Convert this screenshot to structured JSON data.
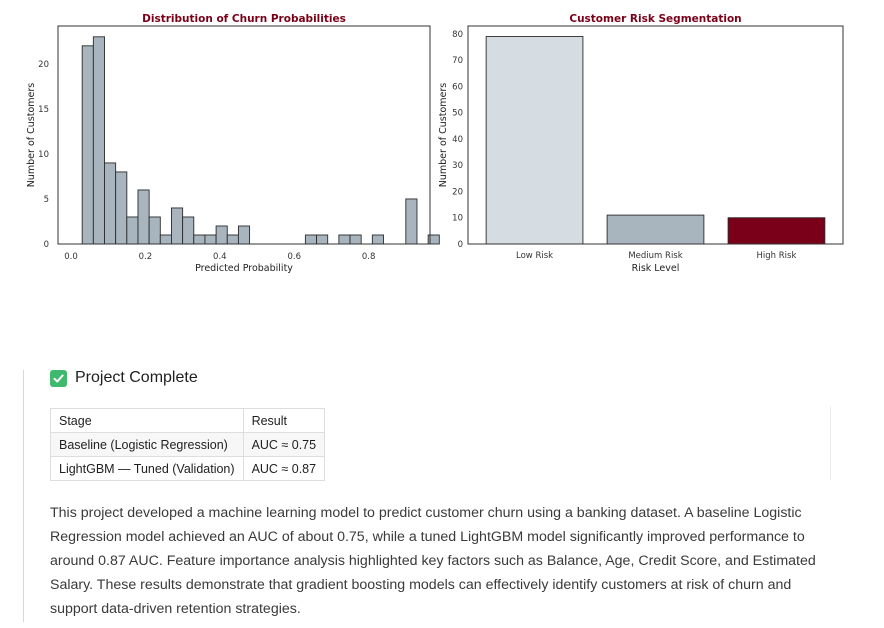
{
  "chart_data": [
    {
      "type": "bar",
      "title": "Distribution of Churn Probabilities",
      "xlabel": "Predicted Probability",
      "ylabel": "Number of Customers",
      "xlim": [
        -0.035,
        0.965
      ],
      "ylim": [
        0,
        24.2
      ],
      "xticks": [
        "0.0",
        "0.2",
        "0.4",
        "0.6",
        "0.8"
      ],
      "xtick_values": [
        0,
        0.2,
        0.4,
        0.6,
        0.8
      ],
      "yticks": [
        "0",
        "5",
        "10",
        "15",
        "20"
      ],
      "ytick_values": [
        0,
        5,
        10,
        15,
        20
      ],
      "bin_start": 0.03,
      "bin_width": 0.03,
      "values": [
        22,
        23,
        9,
        8,
        3,
        6,
        3,
        1,
        4,
        3,
        1,
        1,
        2,
        1,
        2,
        0,
        0,
        0,
        0,
        0,
        1,
        1,
        0,
        1,
        1,
        0,
        1,
        0,
        0,
        5,
        0,
        1
      ],
      "color": "#a8b5bf",
      "grid": false
    },
    {
      "type": "bar",
      "title": "Customer Risk Segmentation",
      "xlabel": "Risk Level",
      "ylabel": "Number of Customers",
      "categories": [
        "Low Risk",
        "Medium Risk",
        "High Risk"
      ],
      "values": [
        79,
        11,
        10
      ],
      "colors": [
        "#d5dce2",
        "#a8b5bf",
        "#7a0019"
      ],
      "ylim": [
        0,
        83
      ],
      "yticks": [
        "0",
        "10",
        "20",
        "30",
        "40",
        "50",
        "60",
        "70",
        "80"
      ],
      "ytick_values": [
        0,
        10,
        20,
        30,
        40,
        50,
        60,
        70,
        80
      ],
      "grid": false
    }
  ],
  "colors": {
    "title": "#7a0019",
    "edge": "#2b2b2b",
    "check": "#3eb96d"
  },
  "output": {
    "heading": "Project Complete",
    "heading_icon": "check-mark-icon",
    "table": {
      "headers": [
        "Stage",
        "Result"
      ],
      "rows": [
        [
          "Baseline (Logistic Regression)",
          "AUC ≈ 0.75"
        ],
        [
          "LightGBM — Tuned (Validation)",
          "AUC ≈ 0.87"
        ]
      ]
    },
    "summary": "This project developed a machine learning model to predict customer churn using a banking dataset. A baseline Logistic Regression model achieved an AUC of about 0.75, while a tuned LightGBM model significantly improved performance to around 0.87 AUC. Feature importance analysis highlighted key factors such as Balance, Age, Credit Score, and Estimated Salary. These results demonstrate that gradient boosting models can effectively identify customers at risk of churn and support data-driven retention strategies."
  }
}
